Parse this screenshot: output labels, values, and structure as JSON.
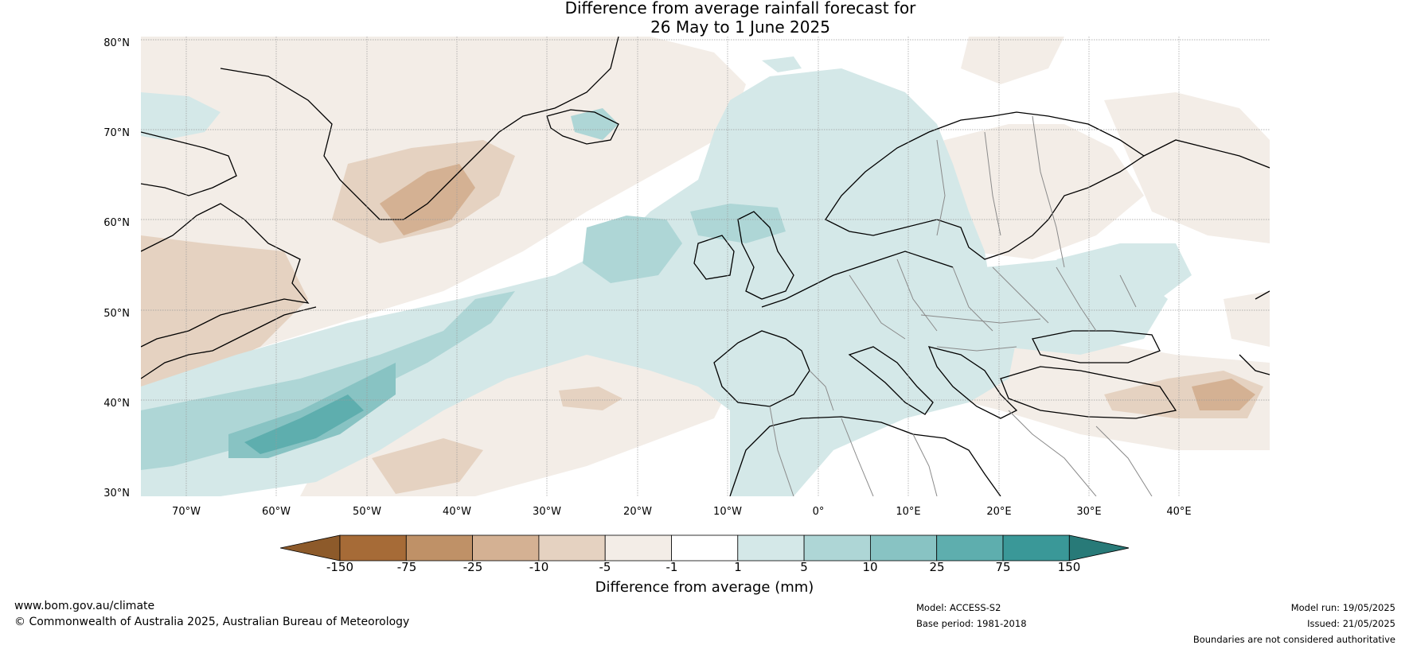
{
  "title_line1": "Difference from average rainfall forecast for",
  "title_line2": "26 May to 1 June 2025",
  "lat_labels": [
    "80°N",
    "70°N",
    "60°N",
    "50°N",
    "40°N",
    "30°N"
  ],
  "lon_labels": [
    "70°W",
    "60°W",
    "50°W",
    "40°W",
    "30°W",
    "20°W",
    "10°W",
    "0°",
    "10°E",
    "20°E",
    "30°E",
    "40°E"
  ],
  "colorbar": {
    "ticks": [
      "-150",
      "-75",
      "-25",
      "-10",
      "-5",
      "-1",
      "1",
      "5",
      "10",
      "25",
      "75",
      "150"
    ],
    "colors": [
      "#8d5a2a",
      "#a66b37",
      "#bf9167",
      "#d4b193",
      "#e5d2c1",
      "#f3ede7",
      "#ffffff",
      "#d4e8e8",
      "#aed6d6",
      "#88c3c3",
      "#5eaeae",
      "#3a9898",
      "#287a78"
    ],
    "label": "Difference from average (mm)"
  },
  "footer": {
    "website": "www.bom.gov.au/climate",
    "copyright": "© Commonwealth of Australia 2025, Australian Bureau of Meteorology",
    "model": "Model: ACCESS-S2",
    "base_period": "Base period: 1981-2018",
    "model_run": "Model run: 19/05/2025",
    "issued": "Issued: 21/05/2025",
    "disclaimer": "Boundaries are not considered authoritative"
  }
}
